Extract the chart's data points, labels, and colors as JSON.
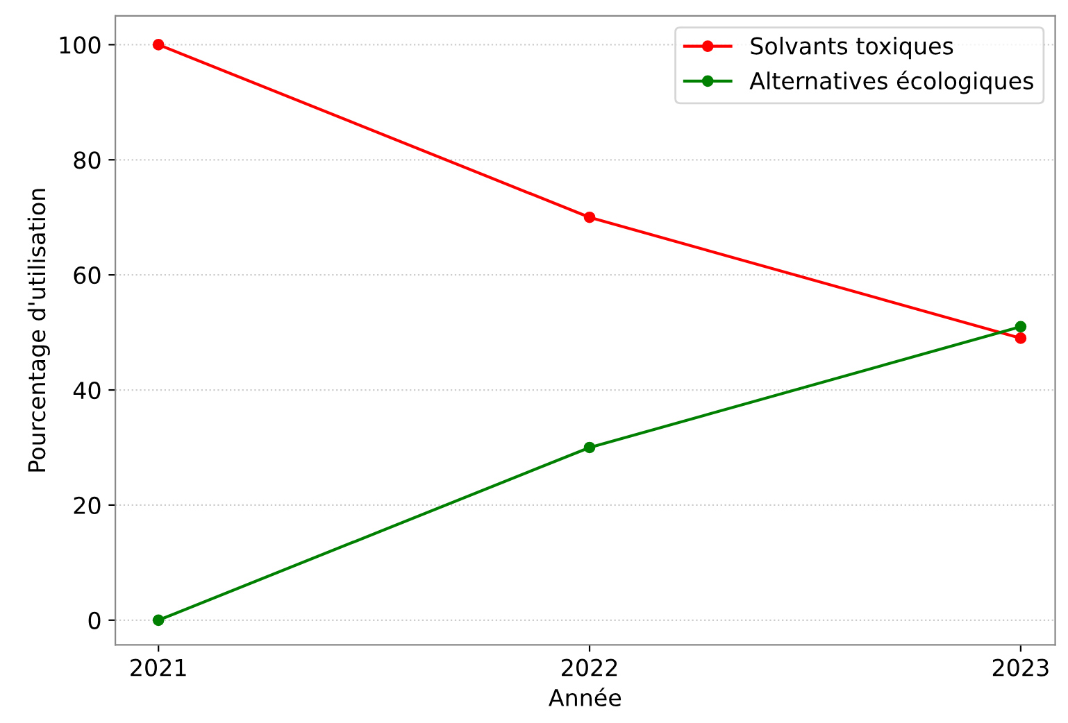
{
  "chart_data": {
    "type": "line",
    "xlabel": "Année",
    "ylabel": "Pourcentage d'utilisation",
    "x": [
      2021,
      2022,
      2023
    ],
    "series": [
      {
        "name": "Solvants toxiques",
        "color": "#ff0000",
        "values": [
          100,
          70,
          49
        ]
      },
      {
        "name": "Alternatives écologiques",
        "color": "#008000",
        "values": [
          0,
          30,
          51
        ]
      }
    ],
    "xlim": [
      2020.9,
      2023.08
    ],
    "xticks": [
      2021,
      2022,
      2023
    ],
    "ylim": [
      -4.3,
      105
    ],
    "yticks": [
      0,
      20,
      40,
      60,
      80,
      100
    ],
    "grid": "y",
    "legend": "top right",
    "marker": "circle",
    "line_style": "solid"
  }
}
